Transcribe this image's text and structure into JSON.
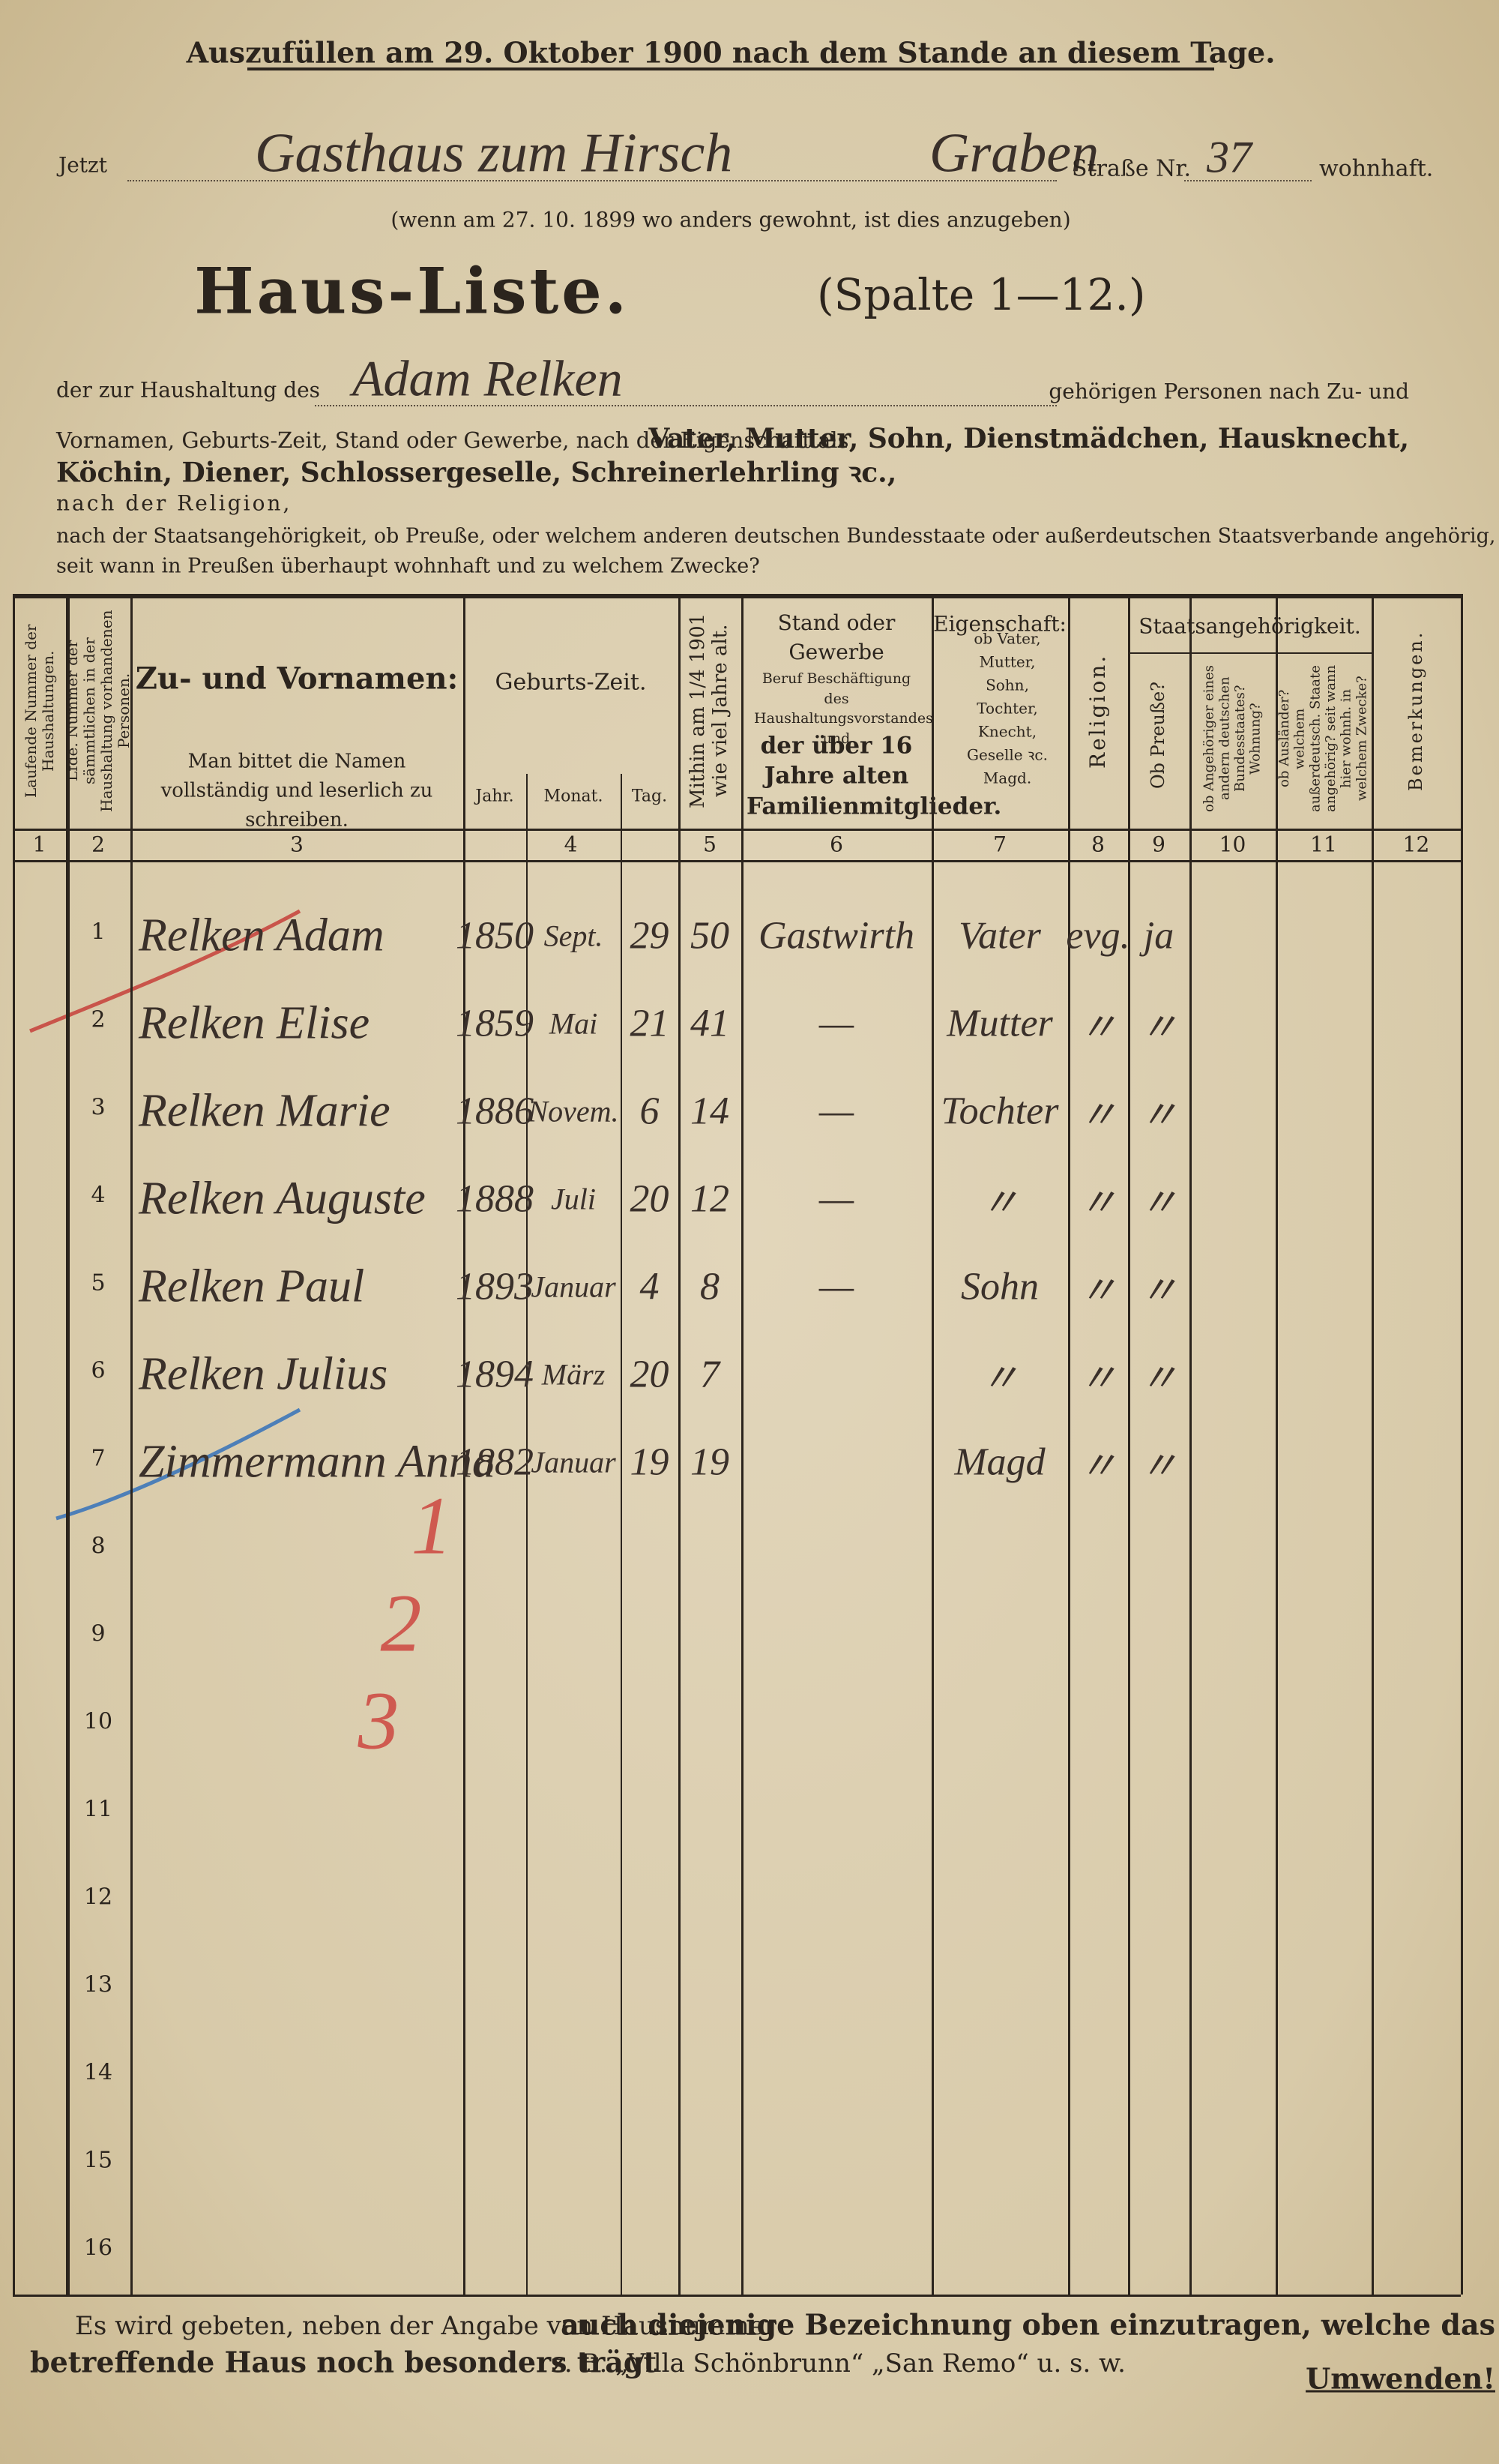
{
  "header": {
    "instruction": "Auszufüllen am 29. Oktober 1900 nach dem Stande an diesem Tage.",
    "address": {
      "prefix": "Jetzt",
      "street": "Gasthaus zum Hirsch",
      "street2": "Graben",
      "street_label": "Straße Nr.",
      "number": "37",
      "suffix": "wohnhaft."
    },
    "note": "(wenn am 27. 10. 1899 wo anders gewohnt, ist dies anzugeben)",
    "title": "Haus-Liste.",
    "subtitle": "(Spalte 1—12.)",
    "household": {
      "prefix": "der zur Haushaltung des",
      "name": "Adam Relken",
      "suffix": "gehörigen Personen nach Zu- und"
    },
    "line2": {
      "text": "Vornamen, Geburts-Zeit, Stand oder Gewerbe, nach der Eigenschaft als",
      "bold": "Vater, Mutter, Sohn, Dienstmädchen, Hausknecht,"
    },
    "line3": "Köchin, Diener, Schlossergeselle, Schreinerlehrling ꝛc.,",
    "line4": "nach der Religion,",
    "line5": "nach der Staatsangehörigkeit, ob Preuße, oder welchem anderen deutschen Bundesstaate oder außerdeutschen Staatsverbande angehörig,",
    "line6": "seit wann in Preußen überhaupt wohnhaft und zu welchem Zwecke?"
  },
  "table": {
    "group_header": "Staatsangehörigkeit.",
    "columns": [
      {
        "number": "1",
        "label": "Laufende Nummer der Haushaltungen."
      },
      {
        "number": "2",
        "label": "Lfde. Nummer der sämmtlichen in der Haushaltung vorhandenen Personen."
      },
      {
        "number": "3",
        "label": "Zu- und Vornamen:",
        "note": "Man bittet die Namen vollständig und leserlich zu schreiben."
      },
      {
        "number": "4",
        "label": "Geburts-Zeit.",
        "sub": [
          "Jahr.",
          "Monat.",
          "Tag."
        ]
      },
      {
        "number": "5",
        "label": "Mithin am 1/4 1901 wie viel Jahre alt."
      },
      {
        "number": "6",
        "label": "Stand oder Gewerbe",
        "note": "Beruf Beschäftigung des Haushaltungsvorstandes und",
        "bold": "der über 16 Jahre alten Familienmitglieder."
      },
      {
        "number": "7",
        "label": "Eigenschaft:",
        "note": "ob Vater, Mutter, Sohn, Tochter, Knecht, Geselle ꝛc. Magd."
      },
      {
        "number": "8",
        "label": "Religion."
      },
      {
        "number": "9",
        "label": "Ob Preuße?"
      },
      {
        "number": "10",
        "label": "ob Angehöriger eines andern deutschen Bundesstaates? Wohnung?"
      },
      {
        "number": "11",
        "label": "ob Ausländer? welchem außerdeutsch. Staate angehörig? seit wann hier wohnh. in welchem Zwecke?"
      },
      {
        "number": "12",
        "label": "Bemerkungen."
      }
    ],
    "rows": [
      {
        "number": "1",
        "name": "Relken Adam",
        "year": "1850",
        "month": "Sept.",
        "day": "29",
        "age": "50",
        "occupation": "Gastwirth",
        "relation": "Vater",
        "religion": "evg.",
        "prussian": "ja"
      },
      {
        "number": "2",
        "name": "Relken Elise",
        "year": "1859",
        "month": "Mai",
        "day": "21",
        "age": "41",
        "occupation": "—",
        "relation": "Mutter",
        "religion": "〃",
        "prussian": "〃"
      },
      {
        "number": "3",
        "name": "Relken Marie",
        "year": "1886",
        "month": "Novem.",
        "day": "6",
        "age": "14",
        "occupation": "—",
        "relation": "Tochter",
        "religion": "〃",
        "prussian": "〃"
      },
      {
        "number": "4",
        "name": "Relken Auguste",
        "year": "1888",
        "month": "Juli",
        "day": "20",
        "age": "12",
        "occupation": "—",
        "relation": "〃",
        "religion": "〃",
        "prussian": "〃"
      },
      {
        "number": "5",
        "name": "Relken Paul",
        "year": "1893",
        "month": "Januar",
        "day": "4",
        "age": "8",
        "occupation": "—",
        "relation": "Sohn",
        "religion": "〃",
        "prussian": "〃"
      },
      {
        "number": "6",
        "name": "Relken Julius",
        "year": "1894",
        "month": "März",
        "day": "20",
        "age": "7",
        "relation": "〃",
        "religion": "〃",
        "prussian": "〃"
      },
      {
        "number": "7",
        "name": "Zimmermann Anna",
        "year": "1882",
        "month": "Januar",
        "day": "19",
        "age": "19",
        "relation": "Magd",
        "religion": "〃",
        "prussian": "〃"
      },
      {
        "number": "8"
      },
      {
        "number": "9"
      },
      {
        "number": "10"
      },
      {
        "number": "11"
      },
      {
        "number": "12"
      },
      {
        "number": "13"
      },
      {
        "number": "14"
      },
      {
        "number": "15"
      },
      {
        "number": "16"
      }
    ],
    "annotations": [
      "1",
      "2",
      "3"
    ]
  },
  "footer": {
    "line1": "Es wird gebeten, neben der Angabe von Hausnummer",
    "line1_bold": "auch diejenige Bezeichnung oben einzutragen, welche das",
    "line2_bold": "betreffende Haus noch besonders trägt",
    "line2": "z. B. „Villa Schönbrunn“ „San Remo“ u. s. w.",
    "closing": "Umwenden!"
  }
}
